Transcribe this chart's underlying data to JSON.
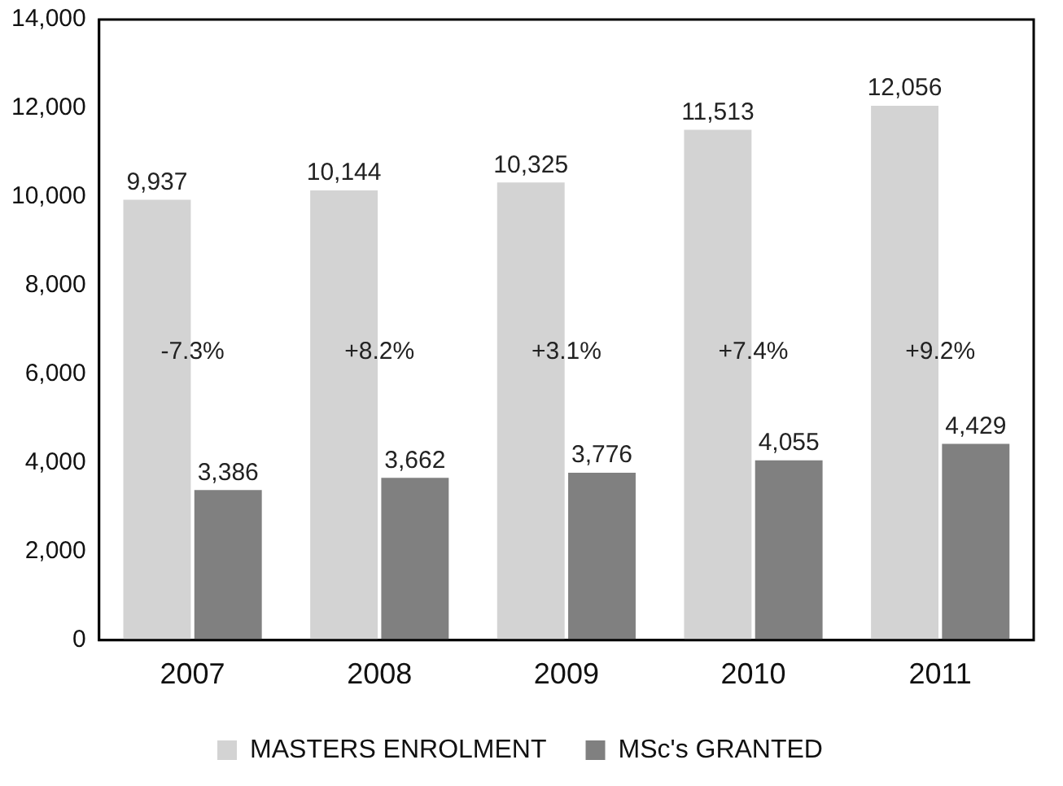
{
  "chart_data": {
    "type": "bar",
    "categories": [
      "2007",
      "2008",
      "2009",
      "2010",
      "2011"
    ],
    "series": [
      {
        "name": "MASTERS ENROLMENT",
        "color": "#d3d3d3",
        "values": [
          9937,
          10144,
          10325,
          11513,
          12056
        ],
        "value_labels": [
          "9,937",
          "10,144",
          "10,325",
          "11,513",
          "12,056"
        ]
      },
      {
        "name": "MSc's GRANTED",
        "color": "#808080",
        "values": [
          3386,
          3662,
          3776,
          4055,
          4429
        ],
        "value_labels": [
          "3,386",
          "3,662",
          "3,776",
          "4,055",
          "4,429"
        ]
      }
    ],
    "ylim": [
      0,
      14000
    ],
    "yticks": [
      {
        "value": 0,
        "label": "0"
      },
      {
        "value": 2000,
        "label": "2,000"
      },
      {
        "value": 4000,
        "label": "4,000"
      },
      {
        "value": 6000,
        "label": "6,000"
      },
      {
        "value": 8000,
        "label": "8,000"
      },
      {
        "value": 10000,
        "label": "10,000"
      },
      {
        "value": 12000,
        "label": "12,000"
      },
      {
        "value": 14000,
        "label": "14,000"
      }
    ],
    "annotations": [
      {
        "text": "-7.3%",
        "x": "2007",
        "y": 6500
      },
      {
        "text": "+8.2%",
        "x": "2008",
        "y": 6500
      },
      {
        "text": "+3.1%",
        "x": "2009",
        "y": 6500
      },
      {
        "text": "+7.4%",
        "x": "2010",
        "y": 6500
      },
      {
        "text": "+9.2%",
        "x": "2011",
        "y": 6500
      }
    ],
    "grid": false,
    "legend": "bottom"
  }
}
